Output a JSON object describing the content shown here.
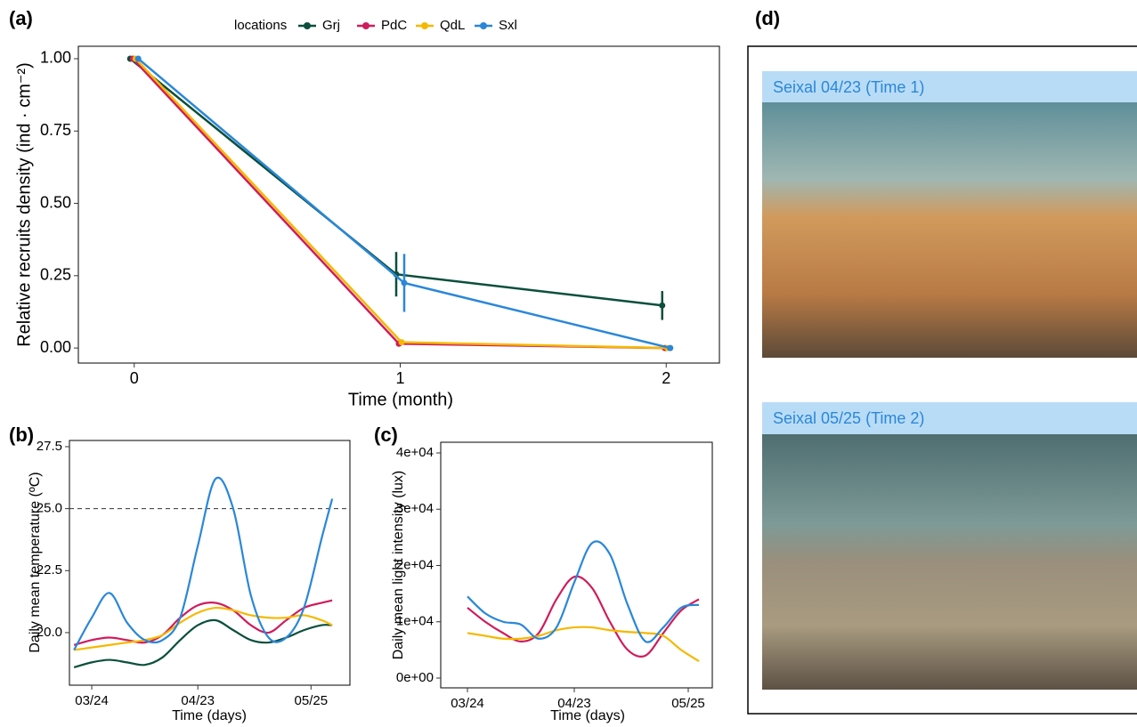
{
  "chart_data": [
    {
      "type": "line",
      "panel_label": "(a)",
      "x_label": "Time (month)",
      "y_label": "Relative recruits density (ind · cm⁻²)",
      "legend_title": "locations",
      "legend_position": "top",
      "x": [
        0,
        1,
        2
      ],
      "xlim": [
        -0.21,
        2.2
      ],
      "xticks": [
        0,
        1,
        2
      ],
      "ylim": [
        -0.052,
        1.043
      ],
      "yticks": [
        {
          "value": 0,
          "label": "0.00"
        },
        {
          "value": 0.25,
          "label": "0.25"
        },
        {
          "value": 0.5,
          "label": "0.50"
        },
        {
          "value": 0.75,
          "label": "0.75"
        },
        {
          "value": 1,
          "label": "1.00"
        }
      ],
      "series": [
        {
          "name": "Grj",
          "color": "#0b4f3c",
          "values": [
            1,
            0.255,
            0.147
          ],
          "errors": [
            null,
            0.077,
            0.05
          ]
        },
        {
          "name": "PdC",
          "color": "#d01c5c",
          "values": [
            1,
            0.015,
            0
          ],
          "errors": [
            null,
            null,
            null
          ]
        },
        {
          "name": "QdL",
          "color": "#f5b800",
          "values": [
            1,
            0.02,
            0
          ],
          "errors": [
            null,
            null,
            null
          ]
        },
        {
          "name": "Sxl",
          "color": "#2a87d8",
          "values": [
            1,
            0.225,
            0
          ],
          "errors": [
            null,
            0.1,
            null
          ]
        }
      ]
    },
    {
      "type": "line",
      "smooth": true,
      "panel_label": "(b)",
      "x_label": "Time (days)",
      "y_label": "Daily mean temperature (ºC)",
      "x": [
        -5,
        0,
        5,
        10,
        15,
        20,
        25,
        30,
        35,
        40,
        45,
        50,
        55,
        60,
        65,
        68
      ],
      "xlim": [
        -6.3,
        73
      ],
      "xticks": [
        {
          "value": 0,
          "label": "03/24"
        },
        {
          "value": 30,
          "label": "04/23"
        },
        {
          "value": 62,
          "label": "05/25"
        }
      ],
      "ylim": [
        17.88,
        27.75
      ],
      "yticks": [
        {
          "value": 20,
          "label": "20.0"
        },
        {
          "value": 22.5,
          "label": "22.5"
        },
        {
          "value": 25,
          "label": "25.0"
        },
        {
          "value": 27.5,
          "label": "27.5"
        }
      ],
      "hline": 25,
      "series": [
        {
          "name": "Grj",
          "color": "#0b4f3c",
          "values": [
            18.6,
            18.8,
            18.9,
            18.8,
            18.7,
            19.0,
            19.7,
            20.3,
            20.5,
            20.1,
            19.7,
            19.6,
            19.8,
            20.1,
            20.3,
            20.3
          ]
        },
        {
          "name": "PdC",
          "color": "#d01c5c",
          "values": [
            19.5,
            19.7,
            19.8,
            19.7,
            19.6,
            19.9,
            20.6,
            21.1,
            21.2,
            20.9,
            20.3,
            20.0,
            20.5,
            21.0,
            21.2,
            21.3
          ]
        },
        {
          "name": "QdL",
          "color": "#f5b800",
          "values": [
            19.3,
            19.4,
            19.5,
            19.6,
            19.7,
            19.9,
            20.4,
            20.8,
            21.0,
            20.9,
            20.7,
            20.6,
            20.6,
            20.7,
            20.5,
            20.3
          ]
        },
        {
          "name": "Sxl",
          "color": "#2a87d8",
          "values": [
            19.3,
            20.6,
            21.6,
            20.4,
            19.7,
            19.7,
            20.6,
            23.5,
            26.2,
            25.0,
            21.5,
            19.8,
            19.8,
            21.0,
            23.8,
            25.4
          ]
        }
      ]
    },
    {
      "type": "line",
      "smooth": true,
      "panel_label": "(c)",
      "x_label": "Time (days)",
      "y_label": "Daily mean light intensity (lux)",
      "x": [
        0,
        5,
        10,
        15,
        20,
        25,
        30,
        35,
        40,
        45,
        50,
        55,
        60,
        65
      ],
      "xlim": [
        -7.5,
        68.75
      ],
      "xticks": [
        {
          "value": 0,
          "label": "03/24"
        },
        {
          "value": 30,
          "label": "04/23"
        },
        {
          "value": 62,
          "label": "05/25"
        }
      ],
      "ylim": [
        -1740,
        41900
      ],
      "yticks": [
        {
          "value": 0,
          "label": "0e+00"
        },
        {
          "value": 10000,
          "label": "1e+04"
        },
        {
          "value": 20000,
          "label": "2e+04"
        },
        {
          "value": 30000,
          "label": "3e+04"
        },
        {
          "value": 40000,
          "label": "4e+04"
        }
      ],
      "series": [
        {
          "name": "PdC",
          "color": "#d01c5c",
          "values": [
            12500,
            10000,
            8000,
            6500,
            8000,
            14000,
            18000,
            16000,
            10000,
            5000,
            4000,
            8000,
            12000,
            14000
          ]
        },
        {
          "name": "QdL",
          "color": "#f5b800",
          "values": [
            8000,
            7500,
            7000,
            7000,
            7500,
            8500,
            9000,
            9000,
            8500,
            8200,
            8000,
            7500,
            5000,
            3000
          ]
        },
        {
          "name": "Sxl",
          "color": "#2a87d8",
          "values": [
            14500,
            11500,
            10000,
            9500,
            7000,
            9000,
            17000,
            24000,
            22000,
            13000,
            6500,
            9000,
            12500,
            13000
          ]
        }
      ]
    }
  ],
  "panel_d": {
    "label": "(d)",
    "photos": [
      {
        "caption": "Seixal 04/23 (Time 1)"
      },
      {
        "caption": "Seixal 05/25 (Time 2)"
      }
    ]
  }
}
